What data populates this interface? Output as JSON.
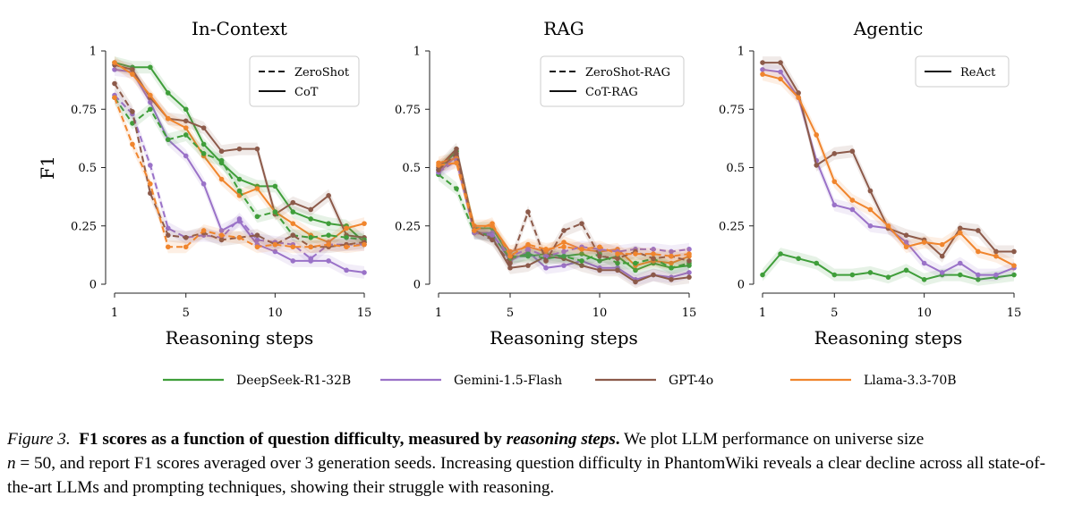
{
  "chart_data": [
    {
      "type": "line",
      "title": "In-Context",
      "xlabel": "Reasoning steps",
      "ylabel": "F1",
      "xlim": [
        1,
        15
      ],
      "ylim": [
        0,
        1
      ],
      "xticks": [
        1,
        5,
        10,
        15
      ],
      "yticks": [
        0,
        0.25,
        0.5,
        0.75,
        1
      ],
      "ytick_labels": [
        "0",
        "0.25",
        "0.5",
        "0.75",
        "1"
      ],
      "legend": {
        "position": "top-right",
        "entries": [
          {
            "label": "ZeroShot",
            "style": "dashed"
          },
          {
            "label": "CoT",
            "style": "solid"
          }
        ]
      },
      "x": [
        1,
        2,
        3,
        4,
        5,
        6,
        7,
        8,
        9,
        10,
        11,
        12,
        13,
        14,
        15
      ],
      "series": [
        {
          "name": "DeepSeek-R1-32B",
          "style": "solid",
          "values": [
            0.95,
            0.93,
            0.93,
            0.82,
            0.75,
            0.6,
            0.52,
            0.45,
            0.42,
            0.42,
            0.31,
            0.28,
            0.26,
            0.25,
            0.18
          ]
        },
        {
          "name": "Gemini-1.5-Flash",
          "style": "solid",
          "values": [
            0.92,
            0.91,
            0.78,
            0.62,
            0.55,
            0.43,
            0.23,
            0.27,
            0.17,
            0.14,
            0.1,
            0.1,
            0.1,
            0.06,
            0.05
          ]
        },
        {
          "name": "GPT-4o",
          "style": "solid",
          "values": [
            0.94,
            0.92,
            0.8,
            0.71,
            0.7,
            0.67,
            0.57,
            0.58,
            0.58,
            0.3,
            0.35,
            0.32,
            0.38,
            0.21,
            0.2
          ]
        },
        {
          "name": "Llama-3.3-70B",
          "style": "solid",
          "values": [
            0.95,
            0.9,
            0.81,
            0.71,
            0.67,
            0.55,
            0.45,
            0.38,
            0.41,
            0.31,
            0.26,
            0.21,
            0.18,
            0.24,
            0.26
          ]
        },
        {
          "name": "DeepSeek-R1-32B",
          "style": "dashed",
          "values": [
            0.8,
            0.69,
            0.75,
            0.62,
            0.64,
            0.56,
            0.53,
            0.4,
            0.29,
            0.31,
            0.21,
            0.2,
            0.21,
            0.2,
            0.19
          ]
        },
        {
          "name": "Gemini-1.5-Flash",
          "style": "dashed",
          "values": [
            0.81,
            0.73,
            0.51,
            0.24,
            0.2,
            0.21,
            0.2,
            0.28,
            0.19,
            0.18,
            0.17,
            0.11,
            0.17,
            0.17,
            0.17
          ]
        },
        {
          "name": "GPT-4o",
          "style": "dashed",
          "values": [
            0.86,
            0.74,
            0.39,
            0.21,
            0.2,
            0.22,
            0.19,
            0.2,
            0.21,
            0.17,
            0.21,
            0.16,
            0.16,
            0.17,
            0.18
          ]
        },
        {
          "name": "Llama-3.3-70B",
          "style": "dashed",
          "values": [
            0.8,
            0.6,
            0.43,
            0.16,
            0.16,
            0.23,
            0.21,
            0.2,
            0.16,
            0.17,
            0.16,
            0.16,
            0.17,
            0.16,
            0.17
          ]
        }
      ]
    },
    {
      "type": "line",
      "title": "RAG",
      "xlabel": "Reasoning steps",
      "ylabel": "",
      "xlim": [
        1,
        15
      ],
      "ylim": [
        0,
        1
      ],
      "xticks": [
        1,
        5,
        10,
        15
      ],
      "yticks": [
        0,
        0.25,
        0.5,
        0.75,
        1
      ],
      "ytick_labels": [
        "0",
        "0.25",
        "0.5",
        "0.75",
        "1"
      ],
      "legend": {
        "position": "top-right",
        "entries": [
          {
            "label": "ZeroShot-RAG",
            "style": "dashed"
          },
          {
            "label": "CoT-RAG",
            "style": "solid"
          }
        ]
      },
      "x": [
        1,
        2,
        3,
        4,
        5,
        6,
        7,
        8,
        9,
        10,
        11,
        12,
        13,
        14,
        15
      ],
      "series": [
        {
          "name": "DeepSeek-R1-32B",
          "style": "solid",
          "values": [
            0.49,
            0.57,
            0.24,
            0.24,
            0.12,
            0.12,
            0.13,
            0.12,
            0.13,
            0.1,
            0.12,
            0.06,
            0.09,
            0.07,
            0.08
          ]
        },
        {
          "name": "Gemini-1.5-Flash",
          "style": "solid",
          "values": [
            0.48,
            0.55,
            0.22,
            0.22,
            0.1,
            0.14,
            0.07,
            0.08,
            0.1,
            0.07,
            0.07,
            0.02,
            0.04,
            0.03,
            0.05
          ]
        },
        {
          "name": "GPT-4o",
          "style": "solid",
          "values": [
            0.5,
            0.58,
            0.23,
            0.2,
            0.07,
            0.08,
            0.12,
            0.11,
            0.08,
            0.06,
            0.06,
            0.01,
            0.04,
            0.02,
            0.03
          ]
        },
        {
          "name": "Llama-3.3-70B",
          "style": "solid",
          "values": [
            0.52,
            0.54,
            0.25,
            0.25,
            0.14,
            0.16,
            0.14,
            0.18,
            0.15,
            0.14,
            0.15,
            0.08,
            0.1,
            0.09,
            0.12
          ]
        },
        {
          "name": "DeepSeek-R1-32B",
          "style": "dashed",
          "values": [
            0.47,
            0.41,
            0.22,
            0.21,
            0.11,
            0.13,
            0.11,
            0.12,
            0.1,
            0.13,
            0.09,
            0.09,
            0.11,
            0.07,
            0.09
          ]
        },
        {
          "name": "Gemini-1.5-Flash",
          "style": "dashed",
          "values": [
            0.48,
            0.53,
            0.22,
            0.21,
            0.12,
            0.15,
            0.12,
            0.14,
            0.16,
            0.15,
            0.14,
            0.15,
            0.15,
            0.14,
            0.15
          ]
        },
        {
          "name": "GPT-4o",
          "style": "dashed",
          "values": [
            0.49,
            0.56,
            0.23,
            0.19,
            0.09,
            0.31,
            0.1,
            0.23,
            0.26,
            0.12,
            0.11,
            0.14,
            0.11,
            0.12,
            0.1
          ]
        },
        {
          "name": "Llama-3.3-70B",
          "style": "dashed",
          "values": [
            0.51,
            0.52,
            0.23,
            0.26,
            0.12,
            0.17,
            0.15,
            0.16,
            0.15,
            0.16,
            0.13,
            0.13,
            0.13,
            0.12,
            0.13
          ]
        }
      ]
    },
    {
      "type": "line",
      "title": "Agentic",
      "xlabel": "Reasoning steps",
      "ylabel": "",
      "xlim": [
        1,
        15
      ],
      "ylim": [
        0,
        1
      ],
      "xticks": [
        1,
        5,
        10,
        15
      ],
      "yticks": [
        0,
        0.25,
        0.5,
        0.75,
        1
      ],
      "ytick_labels": [
        "0",
        "0.25",
        "0.5",
        "0.75",
        "1"
      ],
      "legend": {
        "position": "top-right",
        "entries": [
          {
            "label": "ReAct",
            "style": "solid"
          }
        ]
      },
      "x": [
        1,
        2,
        3,
        4,
        5,
        6,
        7,
        8,
        9,
        10,
        11,
        12,
        13,
        14,
        15
      ],
      "series": [
        {
          "name": "DeepSeek-R1-32B",
          "style": "solid",
          "values": [
            0.04,
            0.13,
            0.11,
            0.09,
            0.04,
            0.04,
            0.05,
            0.03,
            0.06,
            0.02,
            0.04,
            0.04,
            0.02,
            0.03,
            0.04
          ]
        },
        {
          "name": "Gemini-1.5-Flash",
          "style": "solid",
          "values": [
            0.92,
            0.91,
            0.8,
            0.53,
            0.34,
            0.32,
            0.25,
            0.24,
            0.18,
            0.09,
            0.05,
            0.09,
            0.04,
            0.04,
            0.07
          ]
        },
        {
          "name": "GPT-4o",
          "style": "solid",
          "values": [
            0.95,
            0.95,
            0.82,
            0.51,
            0.56,
            0.57,
            0.4,
            0.24,
            0.21,
            0.19,
            0.12,
            0.24,
            0.23,
            0.14,
            0.14
          ]
        },
        {
          "name": "Llama-3.3-70B",
          "style": "solid",
          "values": [
            0.9,
            0.88,
            0.8,
            0.64,
            0.44,
            0.36,
            0.32,
            0.25,
            0.16,
            0.18,
            0.17,
            0.22,
            0.14,
            0.12,
            0.08
          ]
        }
      ]
    }
  ],
  "bottom_legend": [
    {
      "label": "DeepSeek-R1-32B",
      "color": "#3f9e3a"
    },
    {
      "label": "Gemini-1.5-Flash",
      "color": "#9a72c8"
    },
    {
      "label": "GPT-4o",
      "color": "#8c5a4a"
    },
    {
      "label": "Llama-3.3-70B",
      "color": "#f0852d"
    }
  ],
  "caption": {
    "label": "Figure 3.",
    "bold_text": "F1 scores as a function of question difficulty, measured by",
    "bold_italic_text": "reasoning steps",
    "bold_end": ".",
    "text_part1": "We plot LLM performance on universe size",
    "n_symbol": "n",
    "text_part2": "= 50, and report F1 scores averaged over 3 generation seeds. Increasing question difficulty in PhantomWiki reveals a clear decline across all state-of-the-art LLMs and prompting techniques, showing their struggle with reasoning."
  }
}
